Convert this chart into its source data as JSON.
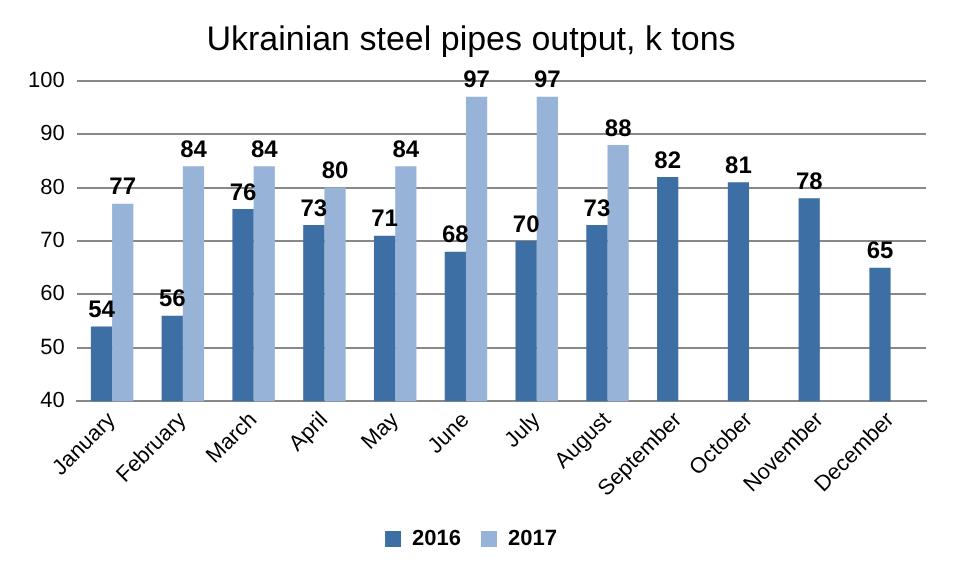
{
  "chart_data": {
    "type": "bar",
    "title": "Ukrainian steel pipes output, k tons",
    "categories": [
      "January",
      "February",
      "March",
      "April",
      "May",
      "June",
      "July",
      "August",
      "September",
      "October",
      "November",
      "December"
    ],
    "series": [
      {
        "name": "2016",
        "color": "#3d6fa5",
        "values": [
          54,
          56,
          76,
          73,
          71,
          68,
          70,
          73,
          82,
          81,
          78,
          65
        ]
      },
      {
        "name": "2017",
        "color": "#97b3d8",
        "values": [
          77,
          84,
          84,
          80,
          84,
          97,
          97,
          88,
          null,
          null,
          null,
          null
        ]
      }
    ],
    "ylim": [
      40,
      100
    ],
    "yticks": [
      40,
      50,
      60,
      70,
      80,
      90,
      100
    ],
    "grid": "y",
    "legend": "bottom",
    "data_labels": true
  }
}
